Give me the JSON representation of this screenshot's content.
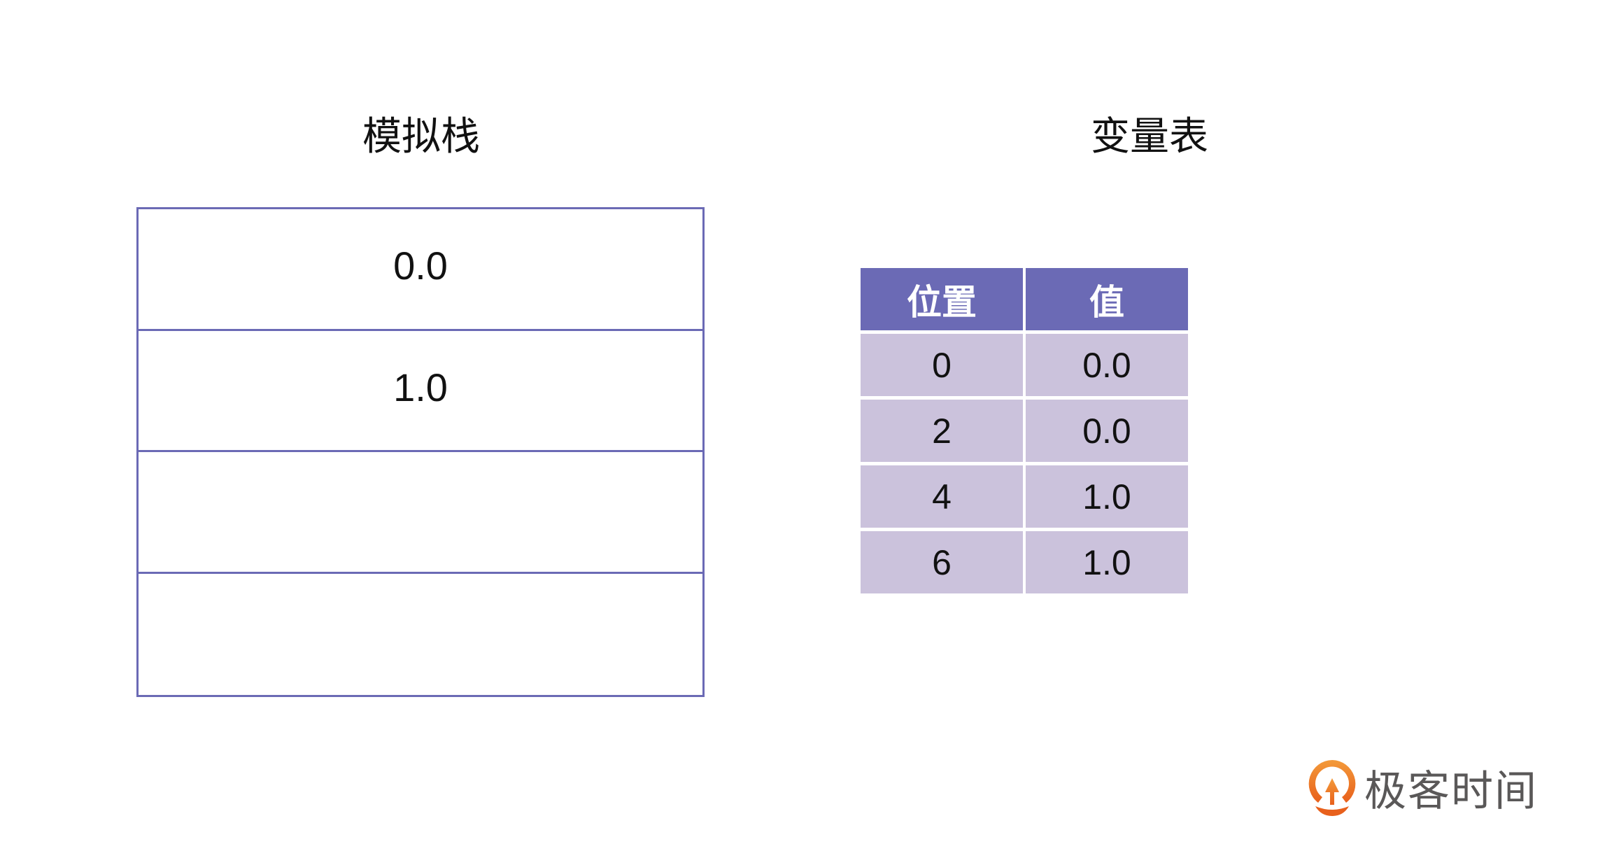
{
  "stack": {
    "title": "模拟栈",
    "cells": [
      "0.0",
      "1.0",
      "",
      ""
    ]
  },
  "variable_table": {
    "title": "变量表",
    "headers": [
      "位置",
      "值"
    ],
    "rows": [
      [
        "0",
        "0.0"
      ],
      [
        "2",
        "0.0"
      ],
      [
        "4",
        "1.0"
      ],
      [
        "6",
        "1.0"
      ]
    ]
  },
  "logo": {
    "text": "极客时间",
    "color": "#f07b22"
  },
  "colors": {
    "accent": "#6b6ab5",
    "cell_fill": "#cbc2dc"
  }
}
